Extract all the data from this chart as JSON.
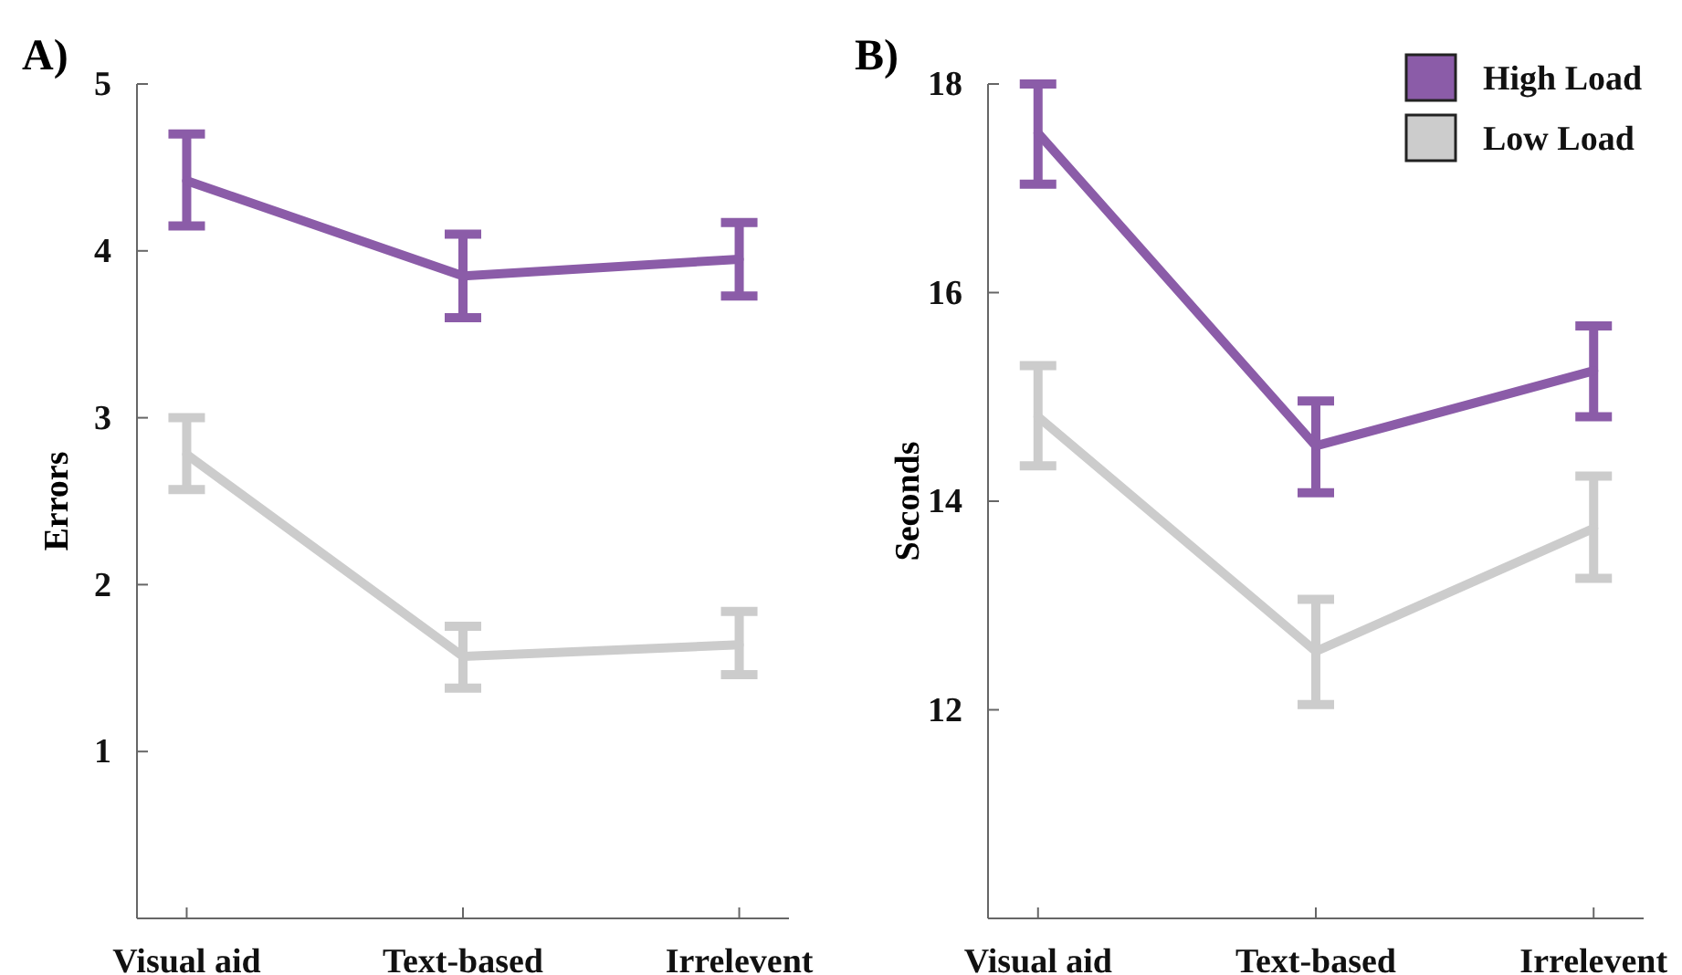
{
  "chart_data": [
    {
      "type": "line",
      "title": "A)",
      "ylabel": "Errors",
      "categories": [
        "Visual aid",
        "Text-based",
        "Irrelevent"
      ],
      "ylim": [
        0,
        5
      ],
      "yticks": [
        1,
        2,
        3,
        4,
        5
      ],
      "grid": false,
      "legend": false,
      "marker": "none",
      "line_style": "solid",
      "series": [
        {
          "color": "#8b5ca8",
          "values": [
            4.42,
            3.85,
            3.95
          ],
          "errors": [
            [
              4.15,
              4.7
            ],
            [
              3.6,
              4.1
            ],
            [
              3.73,
              4.17
            ]
          ]
        },
        {
          "color": "#cccccc",
          "values": [
            2.78,
            1.57,
            1.64
          ],
          "errors": [
            [
              2.57,
              3.0
            ],
            [
              1.38,
              1.75
            ],
            [
              1.46,
              1.84
            ]
          ]
        }
      ]
    },
    {
      "type": "line",
      "title": "B)",
      "ylabel": "Seconds",
      "categories": [
        "Visual aid",
        "Text-based",
        "Irrelevent"
      ],
      "ylim": [
        10,
        18
      ],
      "yticks": [
        12,
        14,
        16,
        18
      ],
      "grid": false,
      "legend": "top right",
      "marker": "none",
      "line_style": "solid",
      "series": [
        {
          "name": "High Load",
          "color": "#8b5ca8",
          "values": [
            17.53,
            14.53,
            15.25
          ],
          "errors": [
            [
              17.04,
              18.0
            ],
            [
              14.08,
              14.96
            ],
            [
              14.81,
              15.68
            ]
          ]
        },
        {
          "name": "Low Load",
          "color": "#cccccc",
          "values": [
            14.81,
            12.56,
            13.74
          ],
          "errors": [
            [
              14.34,
              15.3
            ],
            [
              12.05,
              13.06
            ],
            [
              13.26,
              14.24
            ]
          ]
        }
      ]
    }
  ]
}
